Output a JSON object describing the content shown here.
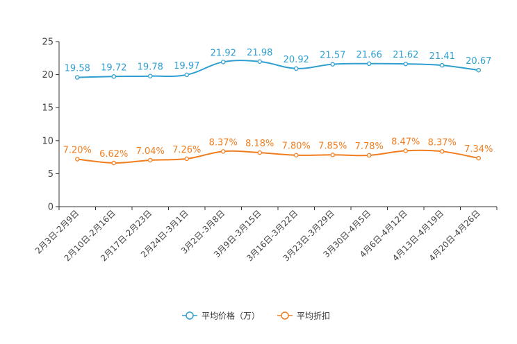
{
  "chart_data": {
    "type": "line",
    "categories": [
      "2月3日-2月9日",
      "2月10日-2月16日",
      "2月17日-2月23日",
      "2月24日-3月1日",
      "3月2日-3月8日",
      "3月9日-3月15日",
      "3月16日-3月22日",
      "3月23日-3月29日",
      "3月30日-4月5日",
      "4月6日-4月12日",
      "4月13日-4月19日",
      "4月20日-4月26日"
    ],
    "ylim": [
      0,
      25
    ],
    "yticks": [
      0,
      5,
      10,
      15,
      20,
      25
    ],
    "series": [
      {
        "name": "平均价格（万）",
        "color": "#2f9fd0",
        "values": [
          19.58,
          19.72,
          19.78,
          19.97,
          21.92,
          21.98,
          20.92,
          21.57,
          21.66,
          21.62,
          21.41,
          20.67
        ],
        "labels": [
          "19.58",
          "19.72",
          "19.78",
          "19.97",
          "21.92",
          "21.98",
          "20.92",
          "21.57",
          "21.66",
          "21.62",
          "21.41",
          "20.67"
        ]
      },
      {
        "name": "平均折扣",
        "color": "#f07d1e",
        "values": [
          7.2,
          6.62,
          7.04,
          7.26,
          8.37,
          8.18,
          7.8,
          7.85,
          7.78,
          8.47,
          8.37,
          7.34
        ],
        "labels": [
          "7.20%",
          "6.62%",
          "7.04%",
          "7.26%",
          "8.37%",
          "8.18%",
          "7.80%",
          "7.85%",
          "7.78%",
          "8.47%",
          "8.37%",
          "7.34%"
        ]
      }
    ],
    "legend_position": "bottom-center"
  }
}
